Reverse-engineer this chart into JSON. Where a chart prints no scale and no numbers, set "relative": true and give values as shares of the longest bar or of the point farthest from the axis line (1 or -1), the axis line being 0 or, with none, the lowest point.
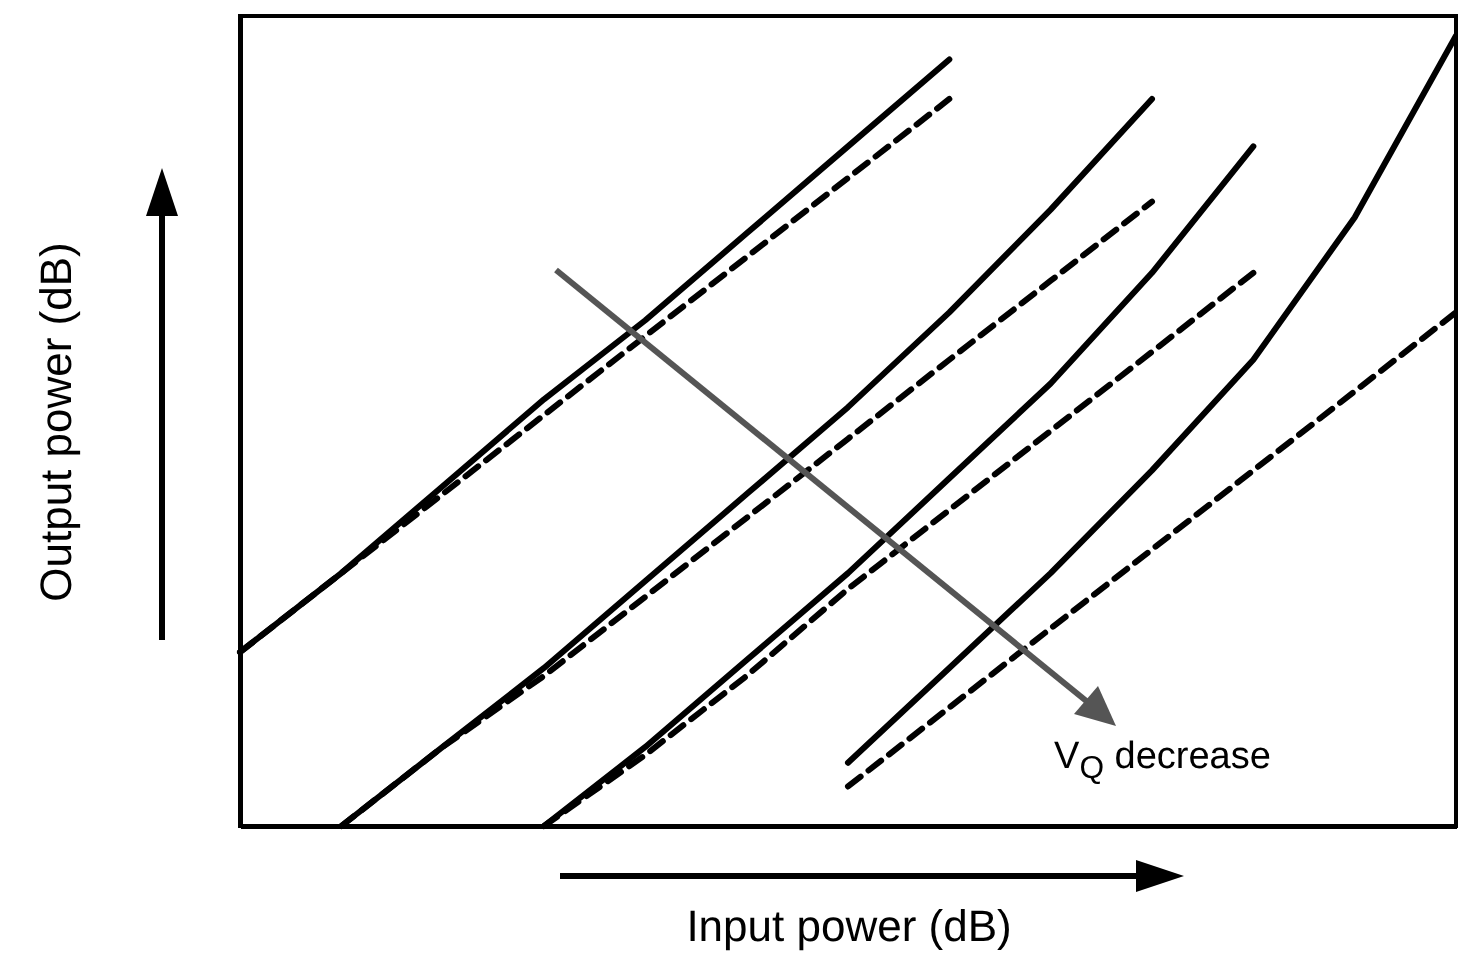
{
  "chart_data": {
    "type": "line",
    "relative": true,
    "xlabel": "Input power (dB)",
    "ylabel": "Output power (dB)",
    "annotations": [
      "V$_{Q}$ decrease"
    ],
    "marker": "none",
    "categories": [
      null,
      null,
      null,
      null,
      null,
      null,
      null,
      null,
      null,
      null,
      null,
      null,
      null
    ],
    "series": [
      {
        "color": "#000000",
        "line_style": "solid",
        "values": [
          0.22,
          0.32,
          0.43,
          0.54,
          0.64,
          0.75,
          0.86,
          0.97,
          null,
          null,
          null,
          null,
          null
        ]
      },
      {
        "color": "#000000",
        "line_style": "dashed",
        "values": [
          0.22,
          0.32,
          0.42,
          0.52,
          0.62,
          0.72,
          0.82,
          0.92,
          null,
          null,
          null,
          null,
          null
        ]
      },
      {
        "color": "#000000",
        "line_style": "solid",
        "values": [
          null,
          0,
          0.1,
          0.2,
          0.31,
          0.42,
          0.53,
          0.65,
          0.78,
          0.92,
          null,
          null,
          null
        ]
      },
      {
        "color": "#000000",
        "line_style": "dashed",
        "values": [
          null,
          0,
          0.1,
          0.19,
          0.29,
          0.39,
          0.49,
          0.59,
          0.69,
          0.79,
          null,
          null,
          null
        ]
      },
      {
        "color": "#000000",
        "line_style": "solid",
        "values": [
          null,
          null,
          null,
          0,
          0.1,
          0.21,
          0.32,
          0.44,
          0.56,
          0.7,
          0.86,
          null,
          null
        ]
      },
      {
        "color": "#000000",
        "line_style": "dashed",
        "values": [
          null,
          null,
          null,
          0,
          0.09,
          0.19,
          0.3,
          0.4,
          0.5,
          0.6,
          0.7,
          null,
          null
        ]
      },
      {
        "color": "#000000",
        "line_style": "solid",
        "values": [
          null,
          null,
          null,
          null,
          null,
          null,
          0.08,
          0.2,
          0.32,
          0.45,
          0.59,
          0.77,
          1
        ]
      },
      {
        "color": "#000000",
        "line_style": "dashed",
        "values": [
          null,
          null,
          null,
          null,
          null,
          null,
          0.05,
          0.15,
          0.25,
          0.35,
          0.45,
          0.55,
          0.65
        ]
      }
    ]
  }
}
